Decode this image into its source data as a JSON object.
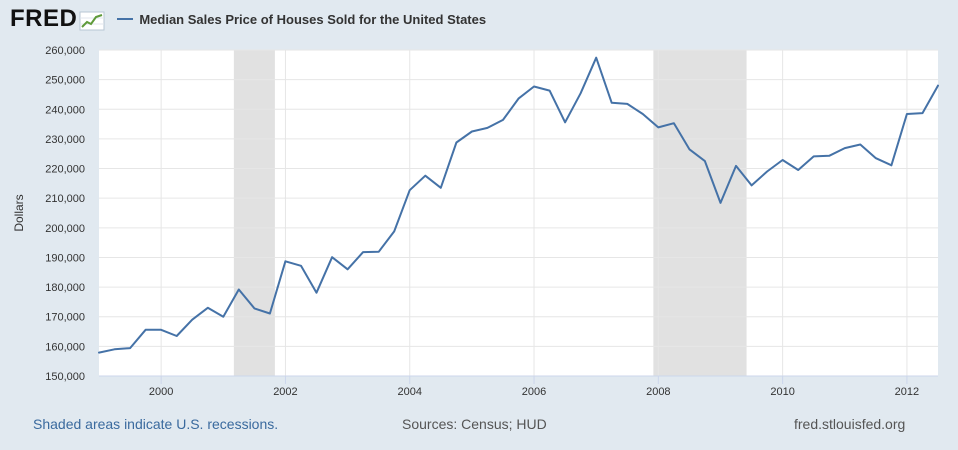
{
  "header": {
    "logo": "FRED",
    "legend_label": "Median Sales Price of Houses Sold for the United States"
  },
  "footer": {
    "recession_note": "Shaded areas indicate U.S. recessions.",
    "sources": "Sources: Census; HUD",
    "site": "fred.stlouisfed.org"
  },
  "colors": {
    "line": "#4572a7",
    "recession": "#e1e1e1",
    "grid": "#e6e6e6",
    "plot_bg": "#ffffff",
    "page_bg": "#e1e9f0"
  },
  "chart_data": {
    "type": "line",
    "title": "",
    "xlabel": "",
    "ylabel": "Dollars",
    "xlim": [
      1999.0,
      2012.5
    ],
    "ylim": [
      150000,
      260000
    ],
    "grid": true,
    "legend_position": "top",
    "x_ticks": [
      2000,
      2002,
      2004,
      2006,
      2008,
      2010,
      2012
    ],
    "x_tick_labels": [
      "2000",
      "2002",
      "2004",
      "2006",
      "2008",
      "2010",
      "2012"
    ],
    "y_ticks": [
      150000,
      160000,
      170000,
      180000,
      190000,
      200000,
      210000,
      220000,
      230000,
      240000,
      250000,
      260000
    ],
    "y_tick_labels": [
      "150,000",
      "160,000",
      "170,000",
      "180,000",
      "190,000",
      "200,000",
      "210,000",
      "220,000",
      "230,000",
      "240,000",
      "250,000",
      "260,000"
    ],
    "recessions": [
      [
        2001.17,
        2001.83
      ],
      [
        2007.92,
        2009.42
      ]
    ],
    "series": [
      {
        "name": "Median Sales Price of Houses Sold for the United States",
        "x": [
          1999.0,
          1999.25,
          1999.5,
          1999.75,
          2000.0,
          2000.25,
          2000.5,
          2000.75,
          2001.0,
          2001.25,
          2001.5,
          2001.75,
          2002.0,
          2002.25,
          2002.5,
          2002.75,
          2003.0,
          2003.25,
          2003.5,
          2003.75,
          2004.0,
          2004.25,
          2004.5,
          2004.75,
          2005.0,
          2005.25,
          2005.5,
          2005.75,
          2006.0,
          2006.25,
          2006.5,
          2006.75,
          2007.0,
          2007.25,
          2007.5,
          2007.75,
          2008.0,
          2008.25,
          2008.5,
          2008.75,
          2009.0,
          2009.25,
          2009.5,
          2009.75,
          2010.0,
          2010.25,
          2010.5,
          2010.75,
          2011.0,
          2011.25,
          2011.5,
          2011.75,
          2012.0,
          2012.25,
          2012.5
        ],
        "y": [
          157900,
          159000,
          159400,
          165600,
          165600,
          163500,
          169000,
          173000,
          170000,
          179200,
          172800,
          171100,
          188700,
          187200,
          178100,
          190100,
          186000,
          191800,
          191900,
          198800,
          212700,
          217600,
          213500,
          228800,
          232500,
          233700,
          236400,
          243600,
          247700,
          246300,
          235600,
          245400,
          257400,
          242200,
          241800,
          238400,
          233900,
          235300,
          226500,
          222500,
          208400,
          220900,
          214300,
          219000,
          222900,
          219500,
          224100,
          224300,
          226900,
          228100,
          223500,
          221100,
          238400,
          238700,
          248000
        ]
      }
    ]
  }
}
